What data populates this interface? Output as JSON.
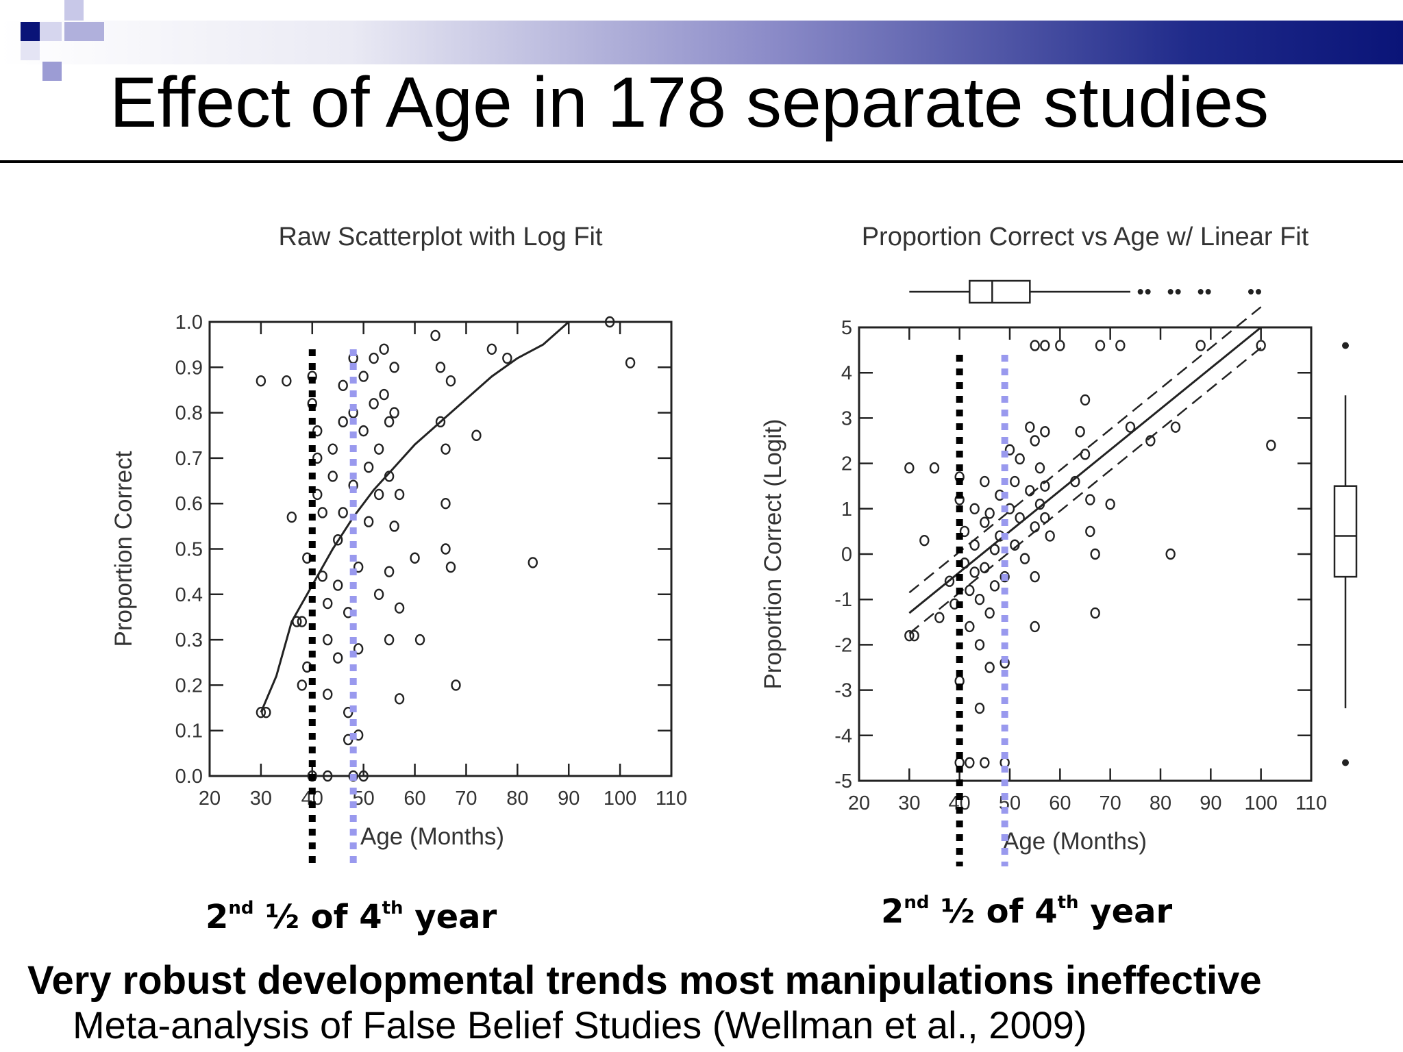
{
  "slide": {
    "title": "Effect of Age in 178 separate studies",
    "conclusion": "Very robust developmental trends most manipulations ineffective",
    "citation": "Meta-analysis of False Belief Studies (Wellman et al., 2009)",
    "annotations": [
      {
        "ordinal": "2",
        "sup": "nd",
        "half": "½ of 4",
        "sup2": "th",
        "tail": "year"
      },
      {
        "ordinal": "2",
        "sup": "nd",
        "half": "½ of 4",
        "sup2": "th",
        "tail": "year"
      }
    ],
    "colors": {
      "header_dark": "#0a1478",
      "header_mid": "#8b8bc8",
      "marker_line": "#000000",
      "marker_line_2": "#9999ee"
    }
  },
  "chart_data": [
    {
      "type": "scatter",
      "title": "Raw Scatterplot with Log Fit",
      "xlabel": "Age (Months)",
      "ylabel": "Proportion Correct",
      "xlim": [
        20,
        110
      ],
      "ylim": [
        0.0,
        1.0
      ],
      "xticks": [
        20,
        30,
        40,
        50,
        60,
        70,
        80,
        90,
        100,
        110
      ],
      "yticks": [
        "0.0",
        "0.1",
        "0.2",
        "0.3",
        "0.4",
        "0.5",
        "0.6",
        "0.7",
        "0.8",
        "0.9",
        "1.0"
      ],
      "grid": false,
      "reference_lines": [
        {
          "x": 40,
          "color": "#000000",
          "style": "dotted"
        },
        {
          "x": 48,
          "color": "#9999ee",
          "style": "dotted"
        }
      ],
      "fit": {
        "type": "log",
        "x": [
          30,
          33,
          36,
          40,
          44,
          48,
          52,
          56,
          60,
          65,
          70,
          75,
          80,
          85,
          90
        ],
        "y": [
          0.14,
          0.22,
          0.34,
          0.42,
          0.5,
          0.57,
          0.63,
          0.68,
          0.73,
          0.78,
          0.83,
          0.88,
          0.92,
          0.95,
          1.0
        ]
      },
      "points": [
        [
          30,
          0.87
        ],
        [
          35,
          0.87
        ],
        [
          30,
          0.14
        ],
        [
          31,
          0.14
        ],
        [
          36,
          0.57
        ],
        [
          37,
          0.34
        ],
        [
          38,
          0.34
        ],
        [
          38,
          0.2
        ],
        [
          39,
          0.24
        ],
        [
          39,
          0.48
        ],
        [
          40,
          0.88
        ],
        [
          40,
          0.82
        ],
        [
          41,
          0.76
        ],
        [
          41,
          0.7
        ],
        [
          41,
          0.62
        ],
        [
          42,
          0.58
        ],
        [
          42,
          0.44
        ],
        [
          43,
          0.38
        ],
        [
          43,
          0.3
        ],
        [
          43,
          0.18
        ],
        [
          44,
          0.72
        ],
        [
          44,
          0.66
        ],
        [
          45,
          0.52
        ],
        [
          45,
          0.42
        ],
        [
          45,
          0.26
        ],
        [
          46,
          0.86
        ],
        [
          46,
          0.78
        ],
        [
          46,
          0.58
        ],
        [
          47,
          0.36
        ],
        [
          47,
          0.14
        ],
        [
          47,
          0.08
        ],
        [
          48,
          0.92
        ],
        [
          48,
          0.8
        ],
        [
          48,
          0.64
        ],
        [
          49,
          0.46
        ],
        [
          49,
          0.28
        ],
        [
          49,
          0.09
        ],
        [
          50,
          0.88
        ],
        [
          50,
          0.76
        ],
        [
          51,
          0.68
        ],
        [
          51,
          0.56
        ],
        [
          52,
          0.92
        ],
        [
          52,
          0.82
        ],
        [
          53,
          0.72
        ],
        [
          53,
          0.62
        ],
        [
          53,
          0.4
        ],
        [
          54,
          0.94
        ],
        [
          54,
          0.84
        ],
        [
          55,
          0.78
        ],
        [
          55,
          0.66
        ],
        [
          55,
          0.45
        ],
        [
          55,
          0.3
        ],
        [
          56,
          0.9
        ],
        [
          56,
          0.8
        ],
        [
          56,
          0.55
        ],
        [
          57,
          0.62
        ],
        [
          57,
          0.37
        ],
        [
          57,
          0.17
        ],
        [
          60,
          0.48
        ],
        [
          61,
          0.3
        ],
        [
          64,
          0.97
        ],
        [
          65,
          0.9
        ],
        [
          65,
          0.78
        ],
        [
          66,
          0.72
        ],
        [
          66,
          0.6
        ],
        [
          66,
          0.5
        ],
        [
          67,
          0.87
        ],
        [
          68,
          0.2
        ],
        [
          67,
          0.46
        ],
        [
          72,
          0.75
        ],
        [
          75,
          0.94
        ],
        [
          78,
          0.92
        ],
        [
          83,
          0.47
        ],
        [
          98,
          1.0
        ],
        [
          102,
          0.91
        ],
        [
          48,
          0.0
        ],
        [
          50,
          0.0
        ],
        [
          40,
          0.0
        ],
        [
          43,
          0.0
        ]
      ]
    },
    {
      "type": "scatter",
      "title": "Proportion Correct vs Age w/ Linear Fit",
      "xlabel": "Age (Months)",
      "ylabel": "Proportion Correct (Logit)",
      "xlim": [
        20,
        110
      ],
      "ylim": [
        -5,
        5
      ],
      "xticks": [
        20,
        30,
        40,
        50,
        60,
        70,
        80,
        90,
        100,
        110
      ],
      "yticks": [
        "-5",
        "-4",
        "-3",
        "-2",
        "-1",
        "0",
        "1",
        "2",
        "3",
        "4",
        "5"
      ],
      "grid": false,
      "reference_lines": [
        {
          "x": 40,
          "color": "#000000",
          "style": "dotted"
        },
        {
          "x": 49,
          "color": "#9999ee",
          "style": "dotted"
        }
      ],
      "fit": {
        "type": "linear",
        "x": [
          30,
          100
        ],
        "y": [
          -1.3,
          5.0
        ],
        "ci_offset": 0.45
      },
      "points": [
        [
          30,
          1.9
        ],
        [
          35,
          1.9
        ],
        [
          30,
          -1.8
        ],
        [
          31,
          -1.8
        ],
        [
          33,
          0.3
        ],
        [
          36,
          -1.4
        ],
        [
          38,
          -0.6
        ],
        [
          39,
          -1.1
        ],
        [
          40,
          1.7
        ],
        [
          40,
          1.2
        ],
        [
          41,
          0.5
        ],
        [
          41,
          -0.2
        ],
        [
          42,
          -0.8
        ],
        [
          42,
          -1.6
        ],
        [
          43,
          1.0
        ],
        [
          43,
          0.2
        ],
        [
          43,
          -0.4
        ],
        [
          44,
          -1.0
        ],
        [
          44,
          -2.0
        ],
        [
          45,
          1.6
        ],
        [
          45,
          0.7
        ],
        [
          45,
          -0.3
        ],
        [
          46,
          -1.3
        ],
        [
          46,
          0.9
        ],
        [
          47,
          0.1
        ],
        [
          47,
          -0.7
        ],
        [
          48,
          1.3
        ],
        [
          48,
          0.4
        ],
        [
          49,
          -0.5
        ],
        [
          49,
          -2.4
        ],
        [
          50,
          2.3
        ],
        [
          50,
          1.0
        ],
        [
          51,
          0.2
        ],
        [
          51,
          1.6
        ],
        [
          52,
          2.1
        ],
        [
          52,
          0.8
        ],
        [
          53,
          -0.1
        ],
        [
          54,
          2.8
        ],
        [
          54,
          1.4
        ],
        [
          55,
          0.6
        ],
        [
          55,
          -0.5
        ],
        [
          55,
          2.5
        ],
        [
          56,
          1.9
        ],
        [
          56,
          1.1
        ],
        [
          57,
          2.7
        ],
        [
          57,
          1.5
        ],
        [
          57,
          0.8
        ],
        [
          58,
          0.4
        ],
        [
          55,
          -1.6
        ],
        [
          55,
          4.6
        ],
        [
          57,
          4.6
        ],
        [
          60,
          4.6
        ],
        [
          63,
          1.6
        ],
        [
          64,
          2.7
        ],
        [
          65,
          3.4
        ],
        [
          65,
          2.2
        ],
        [
          66,
          1.2
        ],
        [
          66,
          0.5
        ],
        [
          67,
          0.0
        ],
        [
          67,
          -1.3
        ],
        [
          68,
          4.6
        ],
        [
          70,
          1.1
        ],
        [
          72,
          4.6
        ],
        [
          74,
          2.8
        ],
        [
          78,
          2.5
        ],
        [
          82,
          0.0
        ],
        [
          83,
          2.8
        ],
        [
          88,
          4.6
        ],
        [
          100,
          4.6
        ],
        [
          102,
          2.4
        ],
        [
          40,
          -4.6
        ],
        [
          42,
          -4.6
        ],
        [
          45,
          -4.6
        ],
        [
          49,
          -4.6
        ],
        [
          40,
          -2.8
        ],
        [
          44,
          -3.4
        ],
        [
          46,
          -2.5
        ]
      ]
    }
  ]
}
